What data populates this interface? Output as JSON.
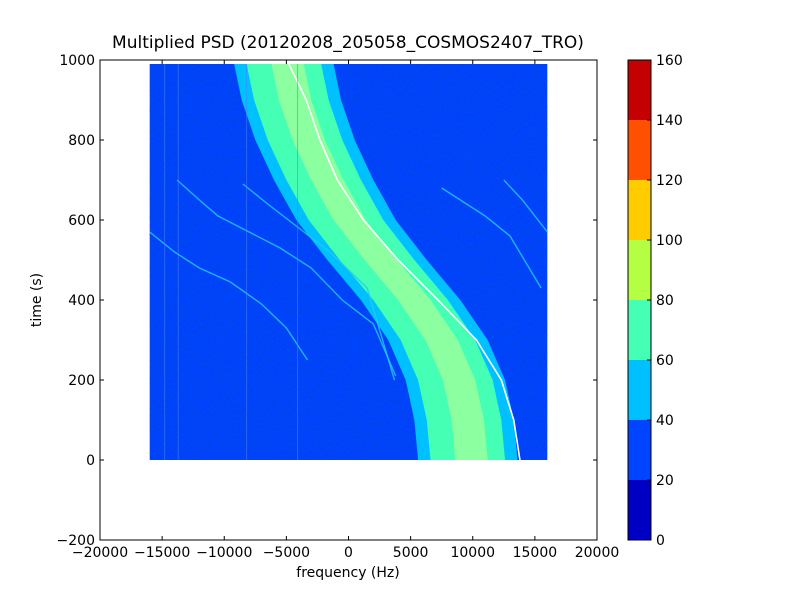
{
  "chart_data": {
    "type": "heatmap",
    "title": "Multiplied PSD (20120208_205058_COSMOS2407_TRO)",
    "xlabel": "frequency (Hz)",
    "ylabel": "time (s)",
    "xlim": [
      -20000,
      20000
    ],
    "ylim": [
      -200,
      1000
    ],
    "xticks": [
      -20000,
      -15000,
      -10000,
      -5000,
      0,
      5000,
      10000,
      15000,
      20000
    ],
    "xtick_labels": [
      "−20000",
      "−15000",
      "−10000",
      "−5000",
      "0",
      "5000",
      "10000",
      "15000",
      "20000"
    ],
    "yticks": [
      -200,
      0,
      200,
      400,
      600,
      800,
      1000
    ],
    "ytick_labels": [
      "−200",
      "0",
      "200",
      "400",
      "600",
      "800",
      "1000"
    ],
    "data_extent": {
      "freq": [
        -16000,
        16000
      ],
      "time": [
        0,
        990
      ]
    },
    "colorbar": {
      "min": 0,
      "max": 160,
      "ticks": [
        0,
        20,
        40,
        60,
        80,
        100,
        120,
        140,
        160
      ],
      "tick_labels": [
        "0",
        "20",
        "40",
        "60",
        "80",
        "100",
        "120",
        "140",
        "160"
      ],
      "colors": [
        "#0000c4",
        "#0044ff",
        "#00c0ff",
        "#44ffb4",
        "#b4ff44",
        "#ffcc00",
        "#ff5000",
        "#c40000"
      ]
    },
    "main_trace": {
      "description_points_time": [
        0,
        100,
        200,
        300,
        400,
        500,
        600,
        700,
        800,
        900,
        990
      ],
      "center_freq": [
        9600,
        9300,
        8600,
        7200,
        5000,
        2300,
        -200,
        -2000,
        -3500,
        -4600,
        -5200
      ],
      "edge_freq": [
        13800,
        13300,
        12300,
        10300,
        7200,
        4000,
        1200,
        -900,
        -2300,
        -3400,
        -4800
      ]
    },
    "grid": false
  }
}
